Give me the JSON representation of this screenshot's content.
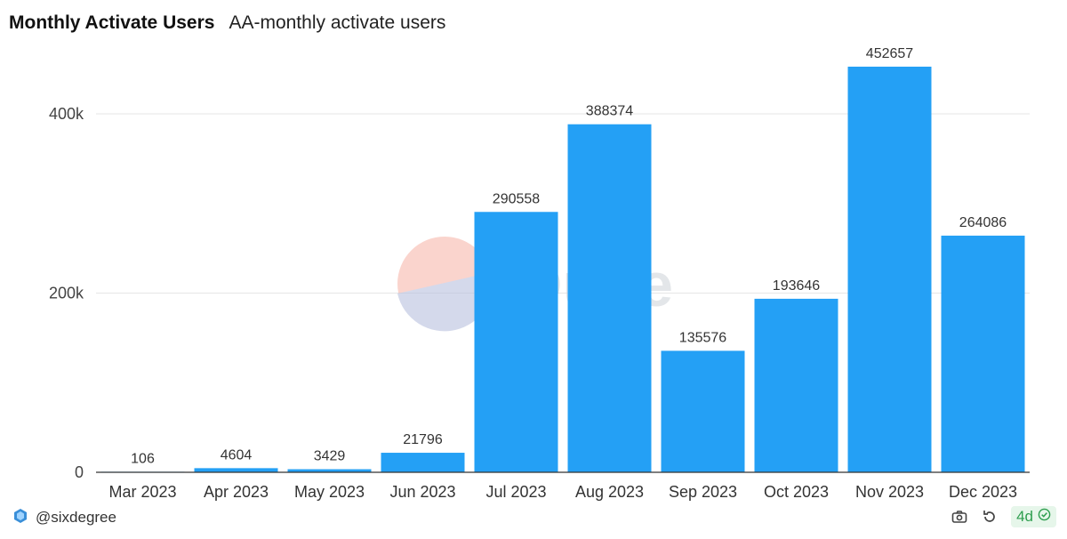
{
  "header": {
    "title": "Monthly Activate Users",
    "subtitle": "AA-monthly activate users"
  },
  "chart_data": {
    "type": "bar",
    "categories": [
      "Mar 2023",
      "Apr 2023",
      "May 2023",
      "Jun 2023",
      "Jul 2023",
      "Aug 2023",
      "Sep 2023",
      "Oct 2023",
      "Nov 2023",
      "Dec 2023"
    ],
    "values": [
      106,
      4604,
      3429,
      21796,
      290558,
      388374,
      135576,
      193646,
      452657,
      264086
    ],
    "data_labels": [
      "106",
      "4604",
      "3429",
      "21796",
      "290558",
      "388374",
      "135576",
      "193646",
      "452657",
      "264086"
    ],
    "yticks": [
      0,
      200000,
      400000
    ],
    "ytick_labels": [
      "0",
      "200k",
      "400k"
    ],
    "ylim": [
      0,
      480000
    ],
    "grid": true,
    "bar_color": "#24a0f5",
    "watermark": "Dune"
  },
  "footer": {
    "author": "@sixdegree",
    "age_badge": "4d",
    "icons": [
      "camera-icon",
      "refresh-icon",
      "check-circle-icon"
    ]
  }
}
